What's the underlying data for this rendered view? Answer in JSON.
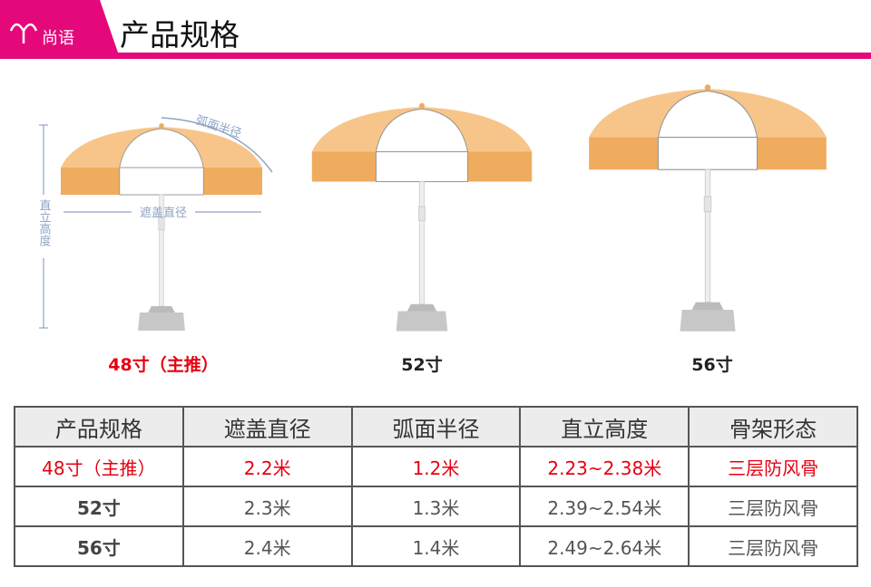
{
  "header": {
    "logo": "尚语",
    "title": "产品规格"
  },
  "diagram": {
    "arc_label": "弧面半径",
    "diameter_label": "遮盖直径",
    "height_label": "直立高度",
    "models": [
      "48寸（主推）",
      "52寸",
      "56寸"
    ]
  },
  "table": {
    "columns": [
      "产品规格",
      "遮盖直径",
      "弧面半径",
      "直立高度",
      "骨架形态"
    ],
    "rows": [
      [
        "48寸（主推）",
        "2.2米",
        "1.2米",
        "2.23~2.38米",
        "三层防风骨"
      ],
      [
        "52寸",
        "2.3米",
        "1.3米",
        "2.39~2.54米",
        "三层防风骨"
      ],
      [
        "56寸",
        "2.4米",
        "1.4米",
        "2.49~2.64米",
        "三层防风骨"
      ]
    ]
  }
}
